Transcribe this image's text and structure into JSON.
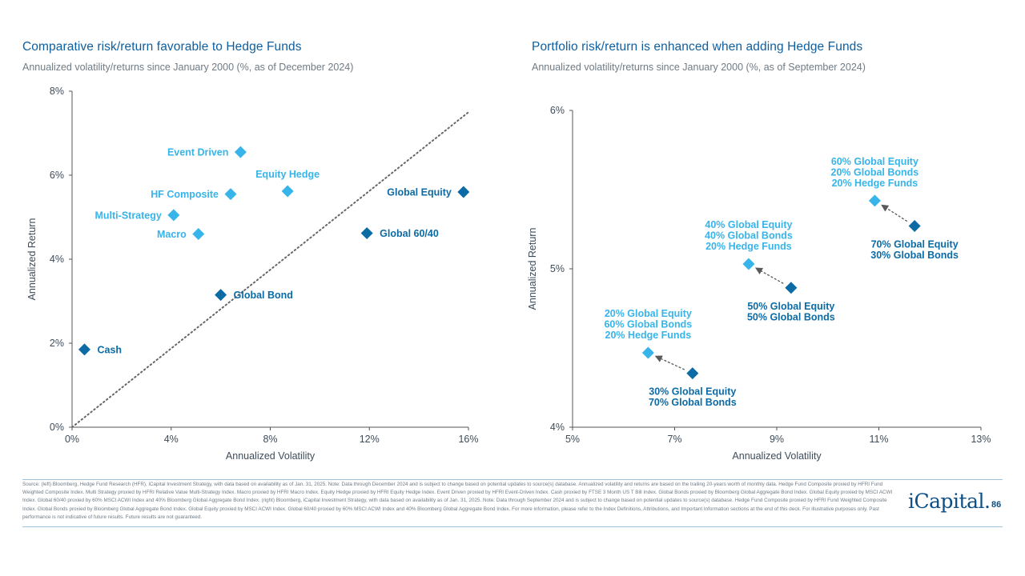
{
  "colors": {
    "dark": "#0c6ba5",
    "light": "#37b4ea",
    "title": "#0e5fa0",
    "axis": "#3d4c5a"
  },
  "left": {
    "title": "Comparative risk/return favorable to Hedge Funds",
    "subtitle": "Annualized volatility/returns since January 2000 (%, as of December 2024)"
  },
  "right": {
    "title": "Portfolio risk/return is enhanced when adding Hedge Funds",
    "subtitle": "Annualized volatility/returns since January 2000 (%, as of September 2024)"
  },
  "chart_data": [
    {
      "type": "scatter",
      "title": "Comparative risk/return favorable to Hedge Funds",
      "xlabel": "Annualized Volatility",
      "ylabel": "Annualized Return",
      "xlim": [
        0,
        16
      ],
      "ylim": [
        0,
        8
      ],
      "xticks": [
        0,
        4,
        8,
        12,
        16
      ],
      "yticks": [
        0,
        2,
        4,
        6,
        8
      ],
      "xtick_labels": [
        "0%",
        "4%",
        "8%",
        "12%",
        "16%"
      ],
      "ytick_labels": [
        "0%",
        "2%",
        "4%",
        "6%",
        "8%"
      ],
      "reference_line": {
        "style": "dotted",
        "from": [
          0,
          0
        ],
        "to": [
          16,
          7.5
        ]
      },
      "points": [
        {
          "label": "Event Driven",
          "x": 6.8,
          "y": 6.55,
          "group": "hedge",
          "label_side": "left"
        },
        {
          "label": "Equity Hedge",
          "x": 8.7,
          "y": 5.62,
          "group": "hedge",
          "label_side": "above"
        },
        {
          "label": "HF Composite",
          "x": 6.4,
          "y": 5.55,
          "group": "hedge",
          "label_side": "left"
        },
        {
          "label": "Multi-Strategy",
          "x": 4.1,
          "y": 5.05,
          "group": "hedge",
          "label_side": "left"
        },
        {
          "label": "Macro",
          "x": 5.1,
          "y": 4.6,
          "group": "hedge",
          "label_side": "left"
        },
        {
          "label": "Global Equity",
          "x": 15.8,
          "y": 5.6,
          "group": "traditional",
          "label_side": "left"
        },
        {
          "label": "Global 60/40",
          "x": 11.9,
          "y": 4.62,
          "group": "traditional",
          "label_side": "right"
        },
        {
          "label": "Global Bond",
          "x": 6.0,
          "y": 3.15,
          "group": "traditional",
          "label_side": "right"
        },
        {
          "label": "Cash",
          "x": 0.5,
          "y": 1.85,
          "group": "traditional",
          "label_side": "right"
        }
      ]
    },
    {
      "type": "scatter",
      "title": "Portfolio risk/return is enhanced when adding Hedge Funds",
      "xlabel": "Annualized Volatility",
      "ylabel": "Annualized Return",
      "xlim": [
        5,
        13
      ],
      "ylim": [
        4,
        6
      ],
      "xticks": [
        5,
        7,
        9,
        11,
        13
      ],
      "yticks": [
        4,
        5,
        6
      ],
      "xtick_labels": [
        "5%",
        "7%",
        "9%",
        "11%",
        "13%"
      ],
      "ytick_labels": [
        "4%",
        "5%",
        "6%"
      ],
      "points": [
        {
          "id": "p1",
          "label": [
            "20% Global Equity",
            "60% Global Bonds",
            "20% Hedge Funds"
          ],
          "x": 6.48,
          "y": 4.47,
          "group": "hedge",
          "label_side": "above"
        },
        {
          "id": "p2",
          "label": [
            "30% Global Equity",
            "70% Global Bonds"
          ],
          "x": 7.35,
          "y": 4.34,
          "group": "traditional",
          "label_side": "below"
        },
        {
          "id": "p3",
          "label": [
            "40% Global Equity",
            "40% Global Bonds",
            "20% Hedge Funds"
          ],
          "x": 8.45,
          "y": 5.03,
          "group": "hedge",
          "label_side": "above"
        },
        {
          "id": "p4",
          "label": [
            "50% Global Equity",
            "50% Global Bonds"
          ],
          "x": 9.28,
          "y": 4.88,
          "group": "traditional",
          "label_side": "below"
        },
        {
          "id": "p5",
          "label": [
            "60% Global Equity",
            "20% Global Bonds",
            "20% Hedge Funds"
          ],
          "x": 10.92,
          "y": 5.43,
          "group": "hedge",
          "label_side": "above"
        },
        {
          "id": "p6",
          "label": [
            "70% Global Equity",
            "30% Global Bonds"
          ],
          "x": 11.7,
          "y": 5.27,
          "group": "traditional",
          "label_side": "below"
        }
      ],
      "arrows": [
        {
          "from": "p2",
          "to": "p1"
        },
        {
          "from": "p4",
          "to": "p3"
        },
        {
          "from": "p6",
          "to": "p5"
        }
      ]
    }
  ],
  "footnote": "Source: (left) Bloomberg, Hedge Fund Research (HFR), iCapital Investment Strategy, with data based on availability as of Jan. 31, 2025. Note: Data through December 2024 and is subject to change based on potential updates to source(s) database. Annualized volatility and returns are based on the trailing 20-years worth of monthly data. Hedge Fund Composite proxied by HFRI Fund Weighted Composite Index. Multi Strategy proxied by HFRI Relative Value Multi-Strategy Index. Macro proxied by HFRI Macro Index. Equity Hedge proxied by HFRI Equity Hedge Index. Event Driven proxied by HFRI Event-Driven Index. Cash proxied by FTSE 3 Month US T Bill Index. Global Bonds proxied by Bloomberg Global Aggregate Bond Index. Global Equity proxied by MSCI ACWI Index. Global 60/40 proxied by 60% MSCI ACWI Index and 40% Bloomberg Global Aggregate Bond Index. (right) Bloomberg, iCapital Investment Strategy, with data based on availability as of Jan. 31, 2025. Note: Data through September 2024 and is subject to change based on potential updates to source(s) database. Hedge Fund Composite proxied by HFRI Fund Weighted Composite Index. Global Bonds proxied by Bloomberg Global Aggregate Bond Index. Global Equity proxied by MSCI ACWI Index. Global 60/40 proxied by 60% MSCI ACWI Index and 40% Bloomberg Global Aggregate Bond Index. For more information, please refer to the Index Definitions, Attributions, and Important Information sections at the end of this deck. For illustrative purposes only. Past performance is not indicative of future results. Future results are not guaranteed.",
  "brand": "iCapital.",
  "page_number": "86"
}
